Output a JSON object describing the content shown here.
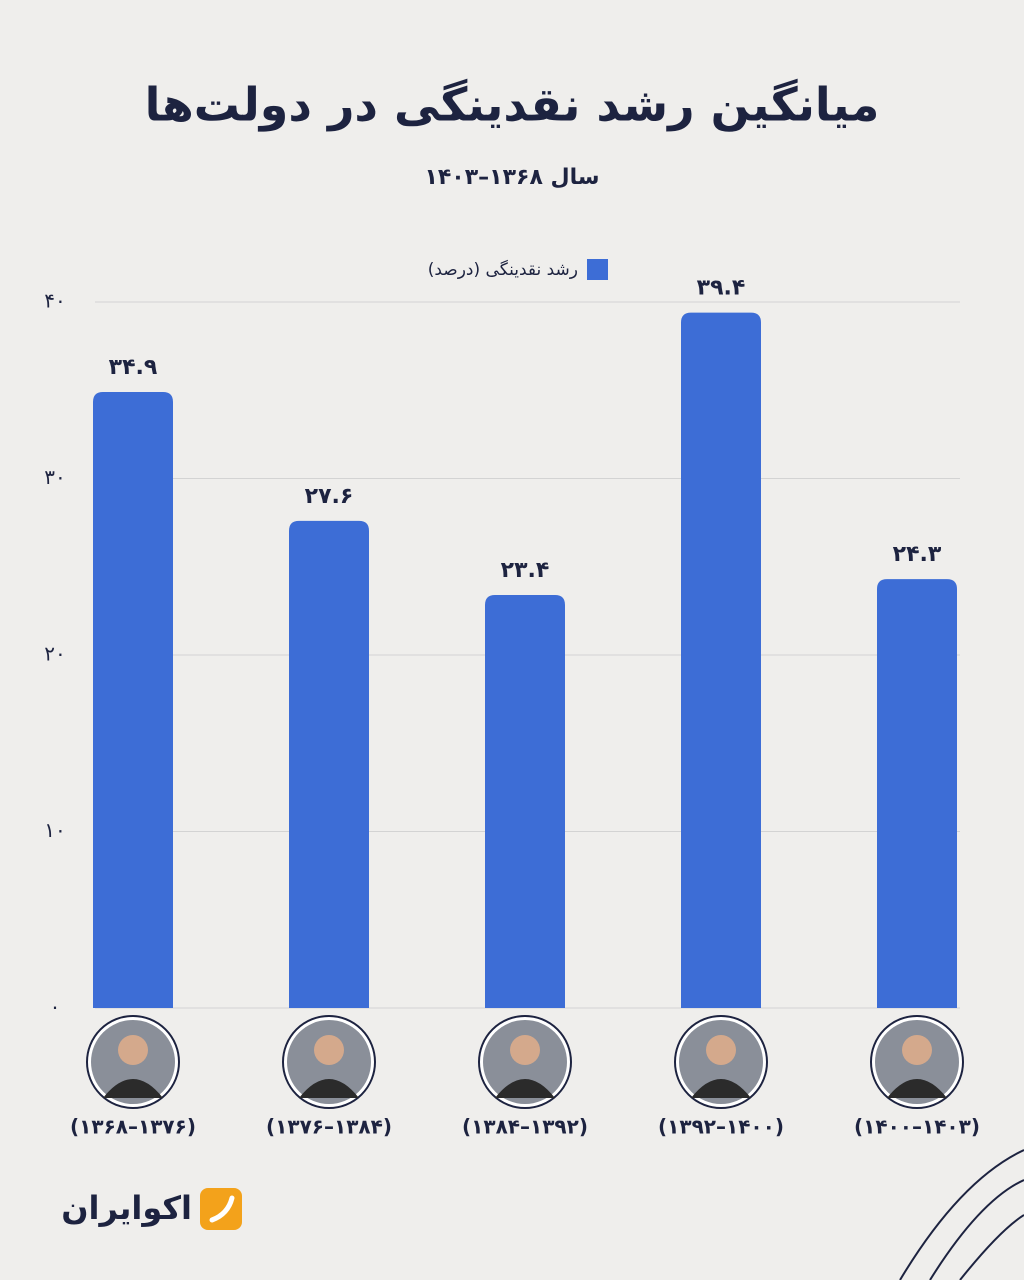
{
  "chart_data": {
    "type": "bar",
    "title": "میانگین رشد نقدینگی در دولت‌ها",
    "subtitle": "سال ۱۳۶۸–۱۴۰۳",
    "categories": [
      "(۱۳۶۸–۱۳۷۶)",
      "(۱۳۷۶–۱۳۸۴)",
      "(۱۳۸۴–۱۳۹۲)",
      "(۱۳۹۲–۱۴۰۰)",
      "(۱۴۰۰–۱۴۰۳)"
    ],
    "series": [
      {
        "name": "رشد نقدینگی (درصد)",
        "color": "#3d6dd6",
        "values": [
          34.9,
          27.6,
          23.4,
          39.4,
          24.3
        ],
        "value_labels": [
          "۳۴.۹",
          "۲۷.۶",
          "۲۳.۴",
          "۳۹.۴",
          "۲۴.۳"
        ]
      }
    ],
    "ylim": [
      0,
      40
    ],
    "yticks": [
      {
        "value": 0,
        "label": "۰"
      },
      {
        "value": 10,
        "label": "۱۰"
      },
      {
        "value": 20,
        "label": "۲۰"
      },
      {
        "value": 30,
        "label": "۳۰"
      },
      {
        "value": 40,
        "label": "۴۰"
      }
    ],
    "grid": true,
    "legend": "top",
    "brand": "اکوایران"
  }
}
